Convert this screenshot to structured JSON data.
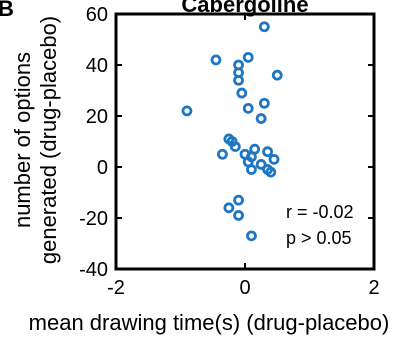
{
  "colors": {
    "marker": "#1f77c4",
    "axis": "#000000",
    "background": "#ffffff"
  },
  "chart_data": {
    "type": "scatter",
    "panel_label": "B",
    "title": "Cabergoline",
    "xlabel": "mean drawing time(s) (drug-placebo)",
    "ylabel_line1": "number of options",
    "ylabel_line2": "generated (drug-placebo)",
    "xlim": [
      -2,
      2
    ],
    "ylim": [
      -40,
      60
    ],
    "xticks": [
      "-2",
      "0",
      "2"
    ],
    "yticks": [
      "60",
      "40",
      "20",
      "0",
      "-20",
      "-40"
    ],
    "grid": false,
    "marker": "open-circle",
    "annotation_r": "r = -0.02",
    "annotation_p": "p > 0.05",
    "points": [
      {
        "x": 0.3,
        "y": 55
      },
      {
        "x": -0.45,
        "y": 42
      },
      {
        "x": 0.05,
        "y": 43
      },
      {
        "x": -0.1,
        "y": 40
      },
      {
        "x": -0.1,
        "y": 37
      },
      {
        "x": -0.1,
        "y": 34
      },
      {
        "x": 0.5,
        "y": 36
      },
      {
        "x": -0.05,
        "y": 29
      },
      {
        "x": 0.3,
        "y": 25
      },
      {
        "x": 0.05,
        "y": 23
      },
      {
        "x": -0.9,
        "y": 22
      },
      {
        "x": 0.25,
        "y": 19
      },
      {
        "x": -0.25,
        "y": 11
      },
      {
        "x": -0.2,
        "y": 10
      },
      {
        "x": -0.15,
        "y": 8
      },
      {
        "x": 0.15,
        "y": 7
      },
      {
        "x": 0.35,
        "y": 6
      },
      {
        "x": -0.35,
        "y": 5
      },
      {
        "x": 0.0,
        "y": 5
      },
      {
        "x": 0.1,
        "y": 4
      },
      {
        "x": 0.45,
        "y": 3
      },
      {
        "x": 0.05,
        "y": 2
      },
      {
        "x": 0.25,
        "y": 1
      },
      {
        "x": 0.1,
        "y": -1
      },
      {
        "x": 0.35,
        "y": -1
      },
      {
        "x": 0.4,
        "y": -2
      },
      {
        "x": -0.1,
        "y": -13
      },
      {
        "x": -0.25,
        "y": -16
      },
      {
        "x": -0.1,
        "y": -19
      },
      {
        "x": 0.1,
        "y": -27
      }
    ]
  }
}
